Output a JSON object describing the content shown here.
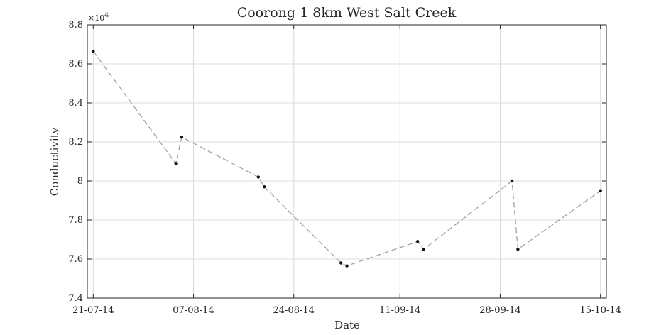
{
  "chart_data": {
    "type": "line",
    "title": "Coorong 1 8km West Salt Creek",
    "xlabel": "Date",
    "ylabel": "Conductivity",
    "y_exponent_label": "×10",
    "y_exponent_power": "4",
    "y_scale_factor": 10000,
    "xlim": [
      "2014-07-20",
      "2014-10-16"
    ],
    "ylim": [
      74000,
      88000
    ],
    "x_tick_dates": [
      "2014-07-21",
      "2014-08-07",
      "2014-08-24",
      "2014-09-11",
      "2014-09-28",
      "2014-10-15"
    ],
    "x_tick_labels": [
      "21-07-14",
      "07-08-14",
      "24-08-14",
      "11-09-14",
      "28-09-14",
      "15-10-14"
    ],
    "y_ticks": [
      74000,
      76000,
      78000,
      80000,
      82000,
      84000,
      86000,
      88000
    ],
    "y_tick_labels": [
      "7.4",
      "7.6",
      "7.8",
      "8",
      "8.2",
      "8.4",
      "8.6",
      "8.8"
    ],
    "grid": true,
    "line_color": "#9a9a9a",
    "line_style": "dashed",
    "marker_color": "#111111",
    "series": [
      {
        "x": [
          "2014-07-21",
          "2014-08-04",
          "2014-08-05",
          "2014-08-18",
          "2014-08-19",
          "2014-09-01",
          "2014-09-02",
          "2014-09-14",
          "2014-09-15",
          "2014-09-30",
          "2014-10-01",
          "2014-10-15"
        ],
        "y": [
          86650,
          80900,
          82250,
          80200,
          79700,
          75800,
          75650,
          76900,
          76500,
          80000,
          76500,
          79500
        ]
      }
    ]
  }
}
